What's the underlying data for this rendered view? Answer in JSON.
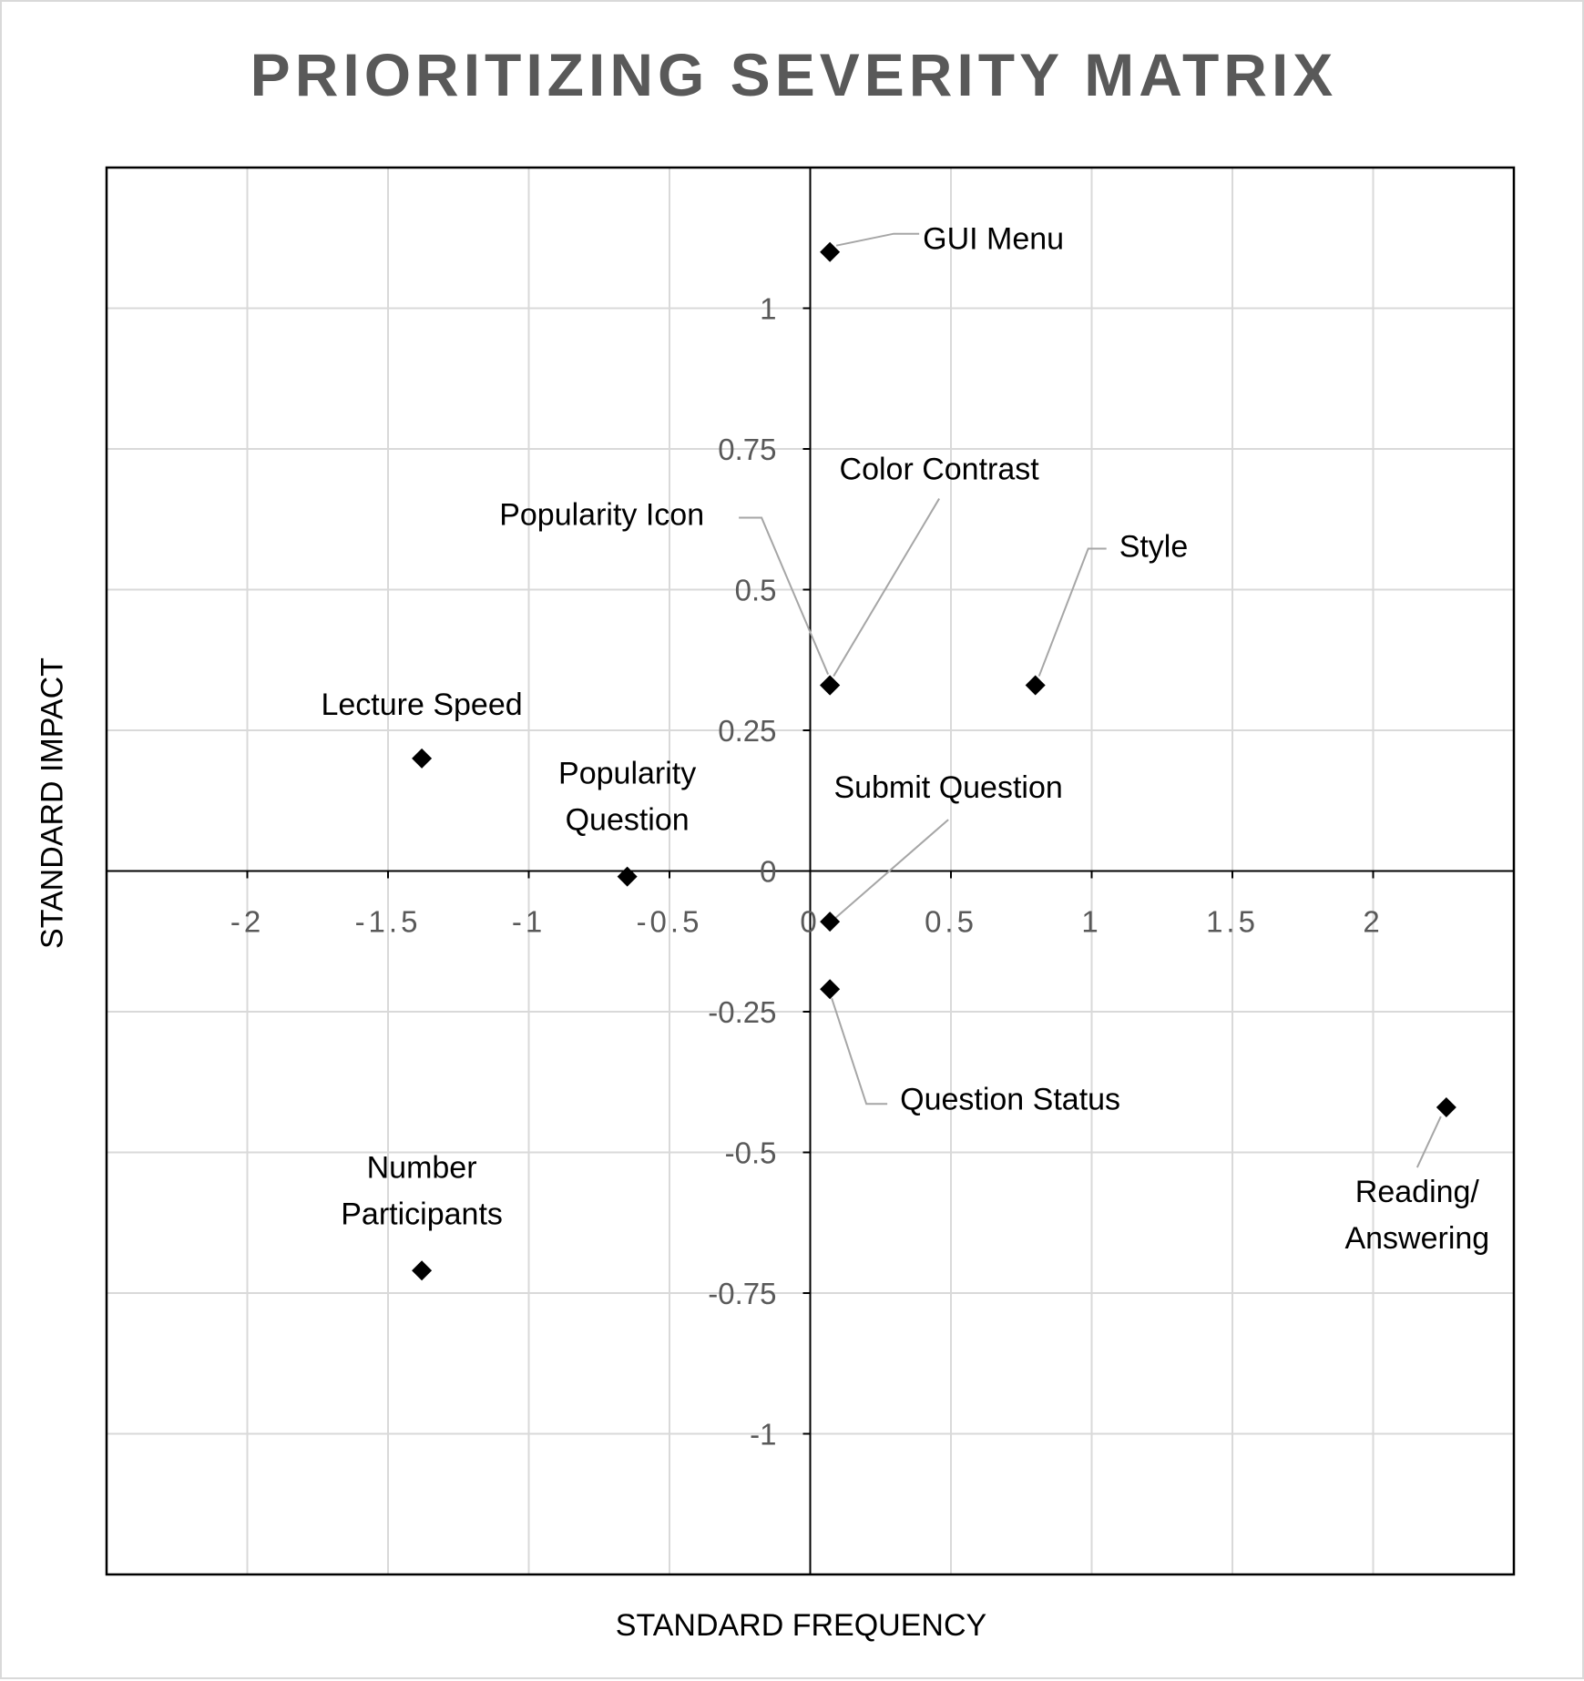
{
  "chart_data": {
    "type": "scatter",
    "title": "PRIORITIZING SEVERITY MATRIX",
    "xlabel": "STANDARD FREQUENCY",
    "ylabel": "STANDARD IMPACT",
    "xlim": [
      -2.5,
      2.5
    ],
    "ylim": [
      -1.25,
      1.25
    ],
    "xticks": [
      -2,
      -1.5,
      -1,
      -0.5,
      0,
      0.5,
      1,
      1.5,
      2
    ],
    "xtick_labels": [
      "-2",
      "-1.5",
      "-1",
      "-0.5",
      "0",
      "0.5",
      "1",
      "1.5",
      "2"
    ],
    "yticks": [
      1,
      0.75,
      0.5,
      0.25,
      0,
      -0.25,
      -0.5,
      -0.75,
      -1
    ],
    "ytick_labels": [
      "1",
      "0.75",
      "0.5",
      "0.25",
      "0",
      "-0.25",
      "-0.5",
      "-0.75",
      "-1"
    ],
    "grid": true,
    "legend": "none",
    "marker": "diamond",
    "colors": {
      "marker": "#000000",
      "grid": "#d9d9d9",
      "leader": "#a6a6a6",
      "tick": "#595959",
      "title": "#595959"
    },
    "points": [
      {
        "label": [
          "GUI Menu"
        ],
        "x": 0.07,
        "y": 1.1
      },
      {
        "label": [
          "Color Contrast"
        ],
        "x": 0.07,
        "y": 0.33
      },
      {
        "label": [
          "Popularity Icon"
        ],
        "x": 0.07,
        "y": 0.33
      },
      {
        "label": [
          "Style"
        ],
        "x": 0.8,
        "y": 0.33
      },
      {
        "label": [
          "Lecture Speed"
        ],
        "x": -1.38,
        "y": 0.2
      },
      {
        "label": [
          "Popularity",
          "Question"
        ],
        "x": -0.65,
        "y": -0.01
      },
      {
        "label": [
          "Submit Question"
        ],
        "x": 0.07,
        "y": -0.09
      },
      {
        "label": [
          "Question Status"
        ],
        "x": 0.07,
        "y": -0.21
      },
      {
        "label": [
          "Reading/",
          "Answering"
        ],
        "x": 2.26,
        "y": -0.42
      },
      {
        "label": [
          "Number",
          "Participants"
        ],
        "x": -1.38,
        "y": -0.71
      }
    ]
  }
}
